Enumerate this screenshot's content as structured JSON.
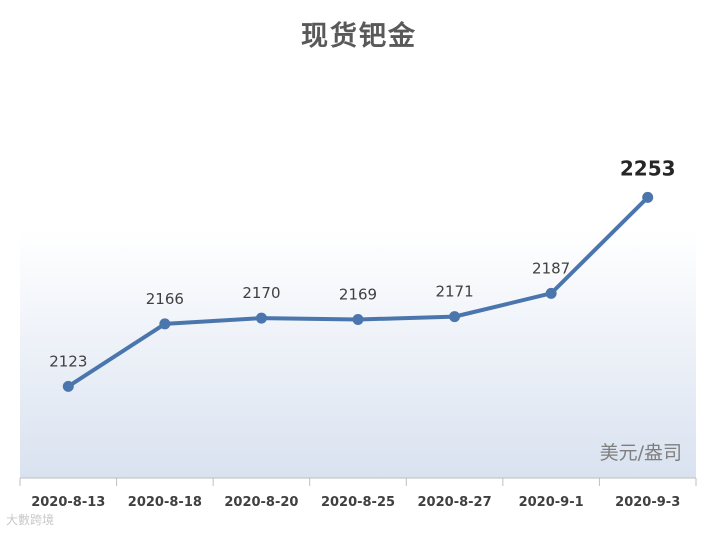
{
  "chart_data": {
    "type": "line",
    "title": "现货钯金",
    "unit_label": "美元/盎司",
    "categories": [
      "2020-8-13",
      "2020-8-18",
      "2020-8-20",
      "2020-8-25",
      "2020-8-27",
      "2020-9-1",
      "2020-9-3"
    ],
    "series": [
      {
        "values": [
          2123,
          2166,
          2170,
          2169,
          2171,
          2187,
          2253
        ]
      }
    ],
    "ylim": [
      2060,
      2320
    ],
    "grid": false,
    "legend": "none",
    "highlight_last_label": true,
    "colors": {
      "line": "#4a76ad",
      "marker": "#4a76ad",
      "label": "#404040",
      "axis": "#bfbfbf"
    }
  },
  "watermark": "大數跨境"
}
